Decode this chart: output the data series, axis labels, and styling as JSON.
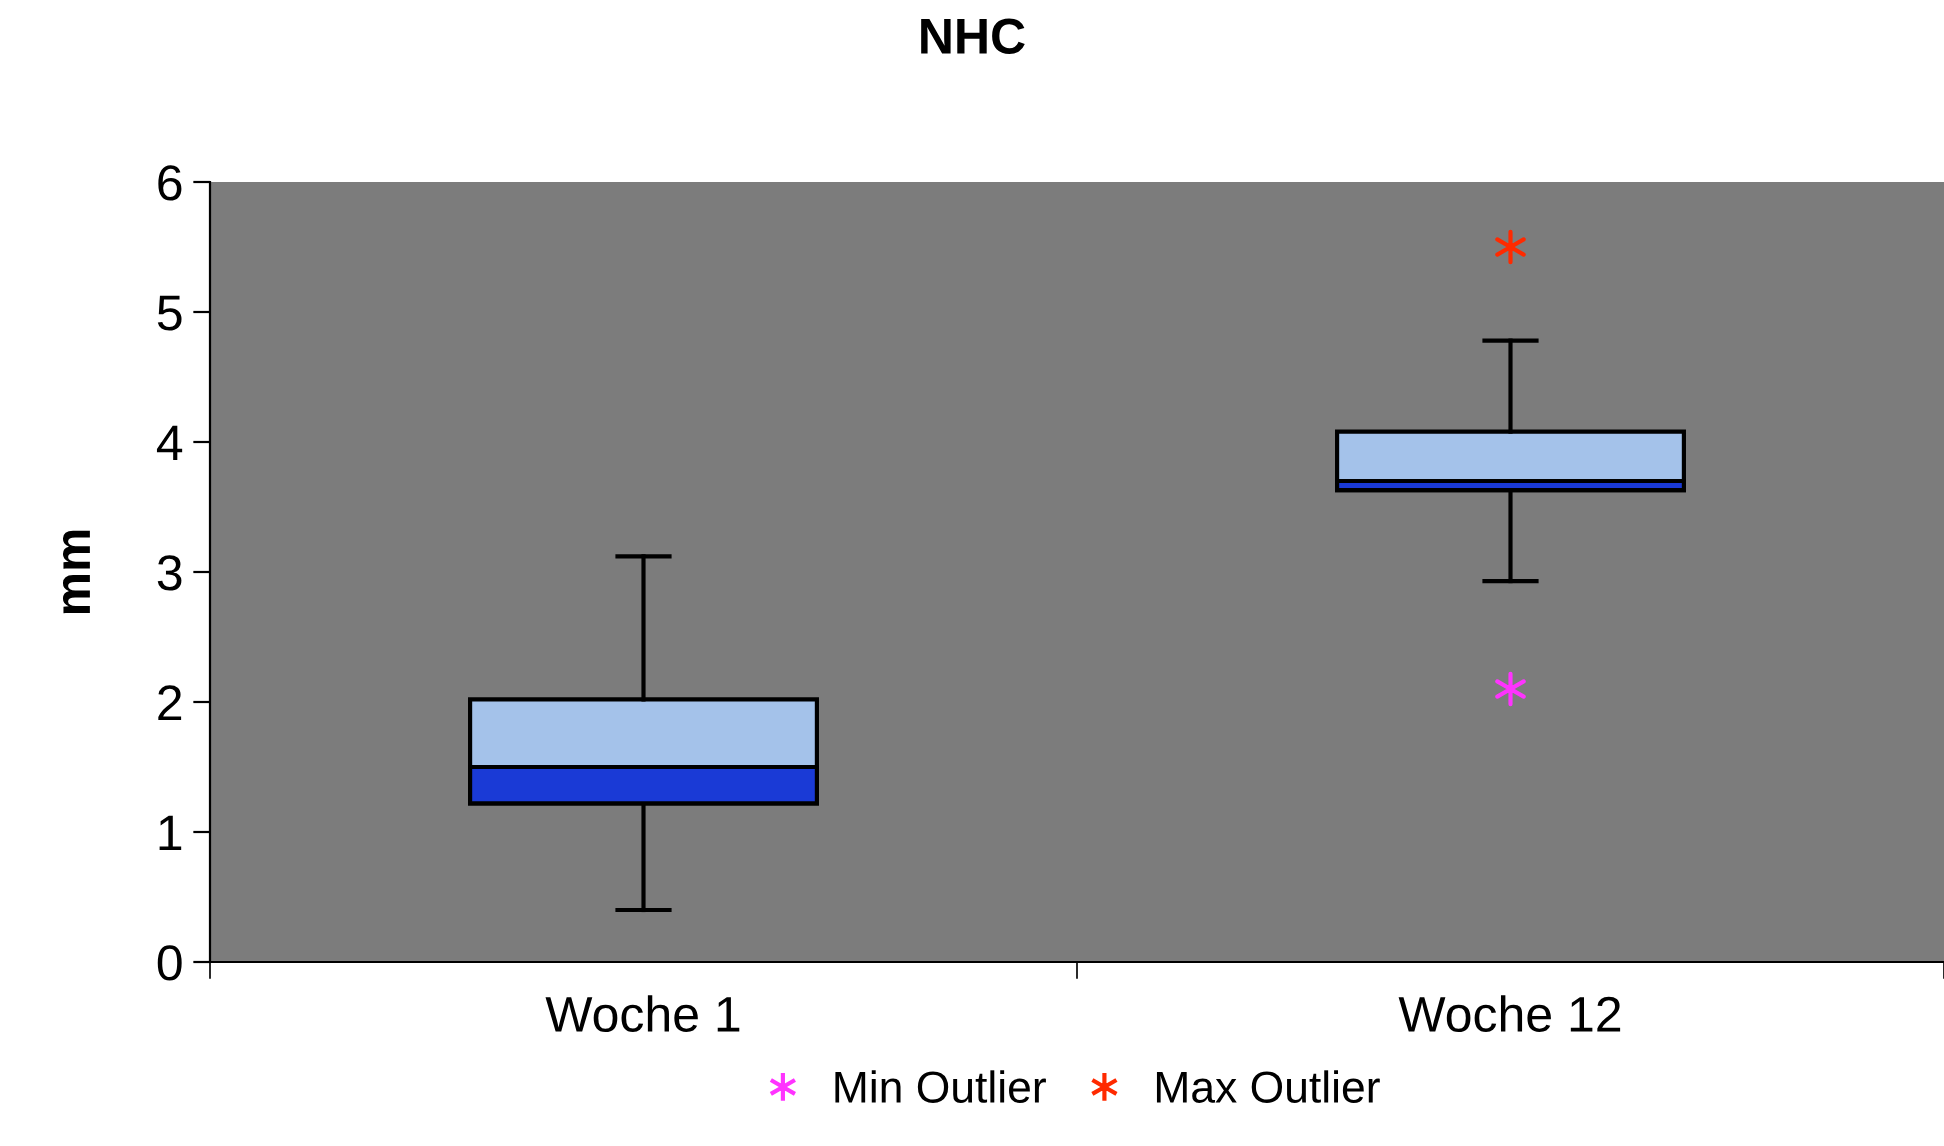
{
  "chart_data": {
    "type": "box",
    "title": "NHC",
    "ylabel": "mm",
    "categories": [
      "Woche 1",
      "Woche 12"
    ],
    "boxes": [
      {
        "low": 0.4,
        "q1": 1.22,
        "median": 1.5,
        "q3": 2.02,
        "high": 3.12
      },
      {
        "low": 2.93,
        "q1": 3.63,
        "median": 3.7,
        "q3": 4.08,
        "high": 4.78
      }
    ],
    "colors": [
      "#1a3ad6",
      "#a4c2ea"
    ],
    "series": [
      {
        "name": "Min Outlier",
        "type": "scatter",
        "color": "#ff33ff",
        "x": [
          "Woche 1",
          "Woche 12"
        ],
        "values": [
          null,
          2.1
        ]
      },
      {
        "name": "Max Outlier",
        "type": "scatter",
        "color": "#ff2a00",
        "x": [
          "Woche 1",
          "Woche 12"
        ],
        "values": [
          null,
          5.5
        ]
      }
    ],
    "marker": "cross",
    "ylim": [
      0,
      6
    ],
    "yticks": [
      0,
      1,
      2,
      3,
      4,
      5,
      6
    ],
    "grid": false,
    "legend": "bottom"
  }
}
